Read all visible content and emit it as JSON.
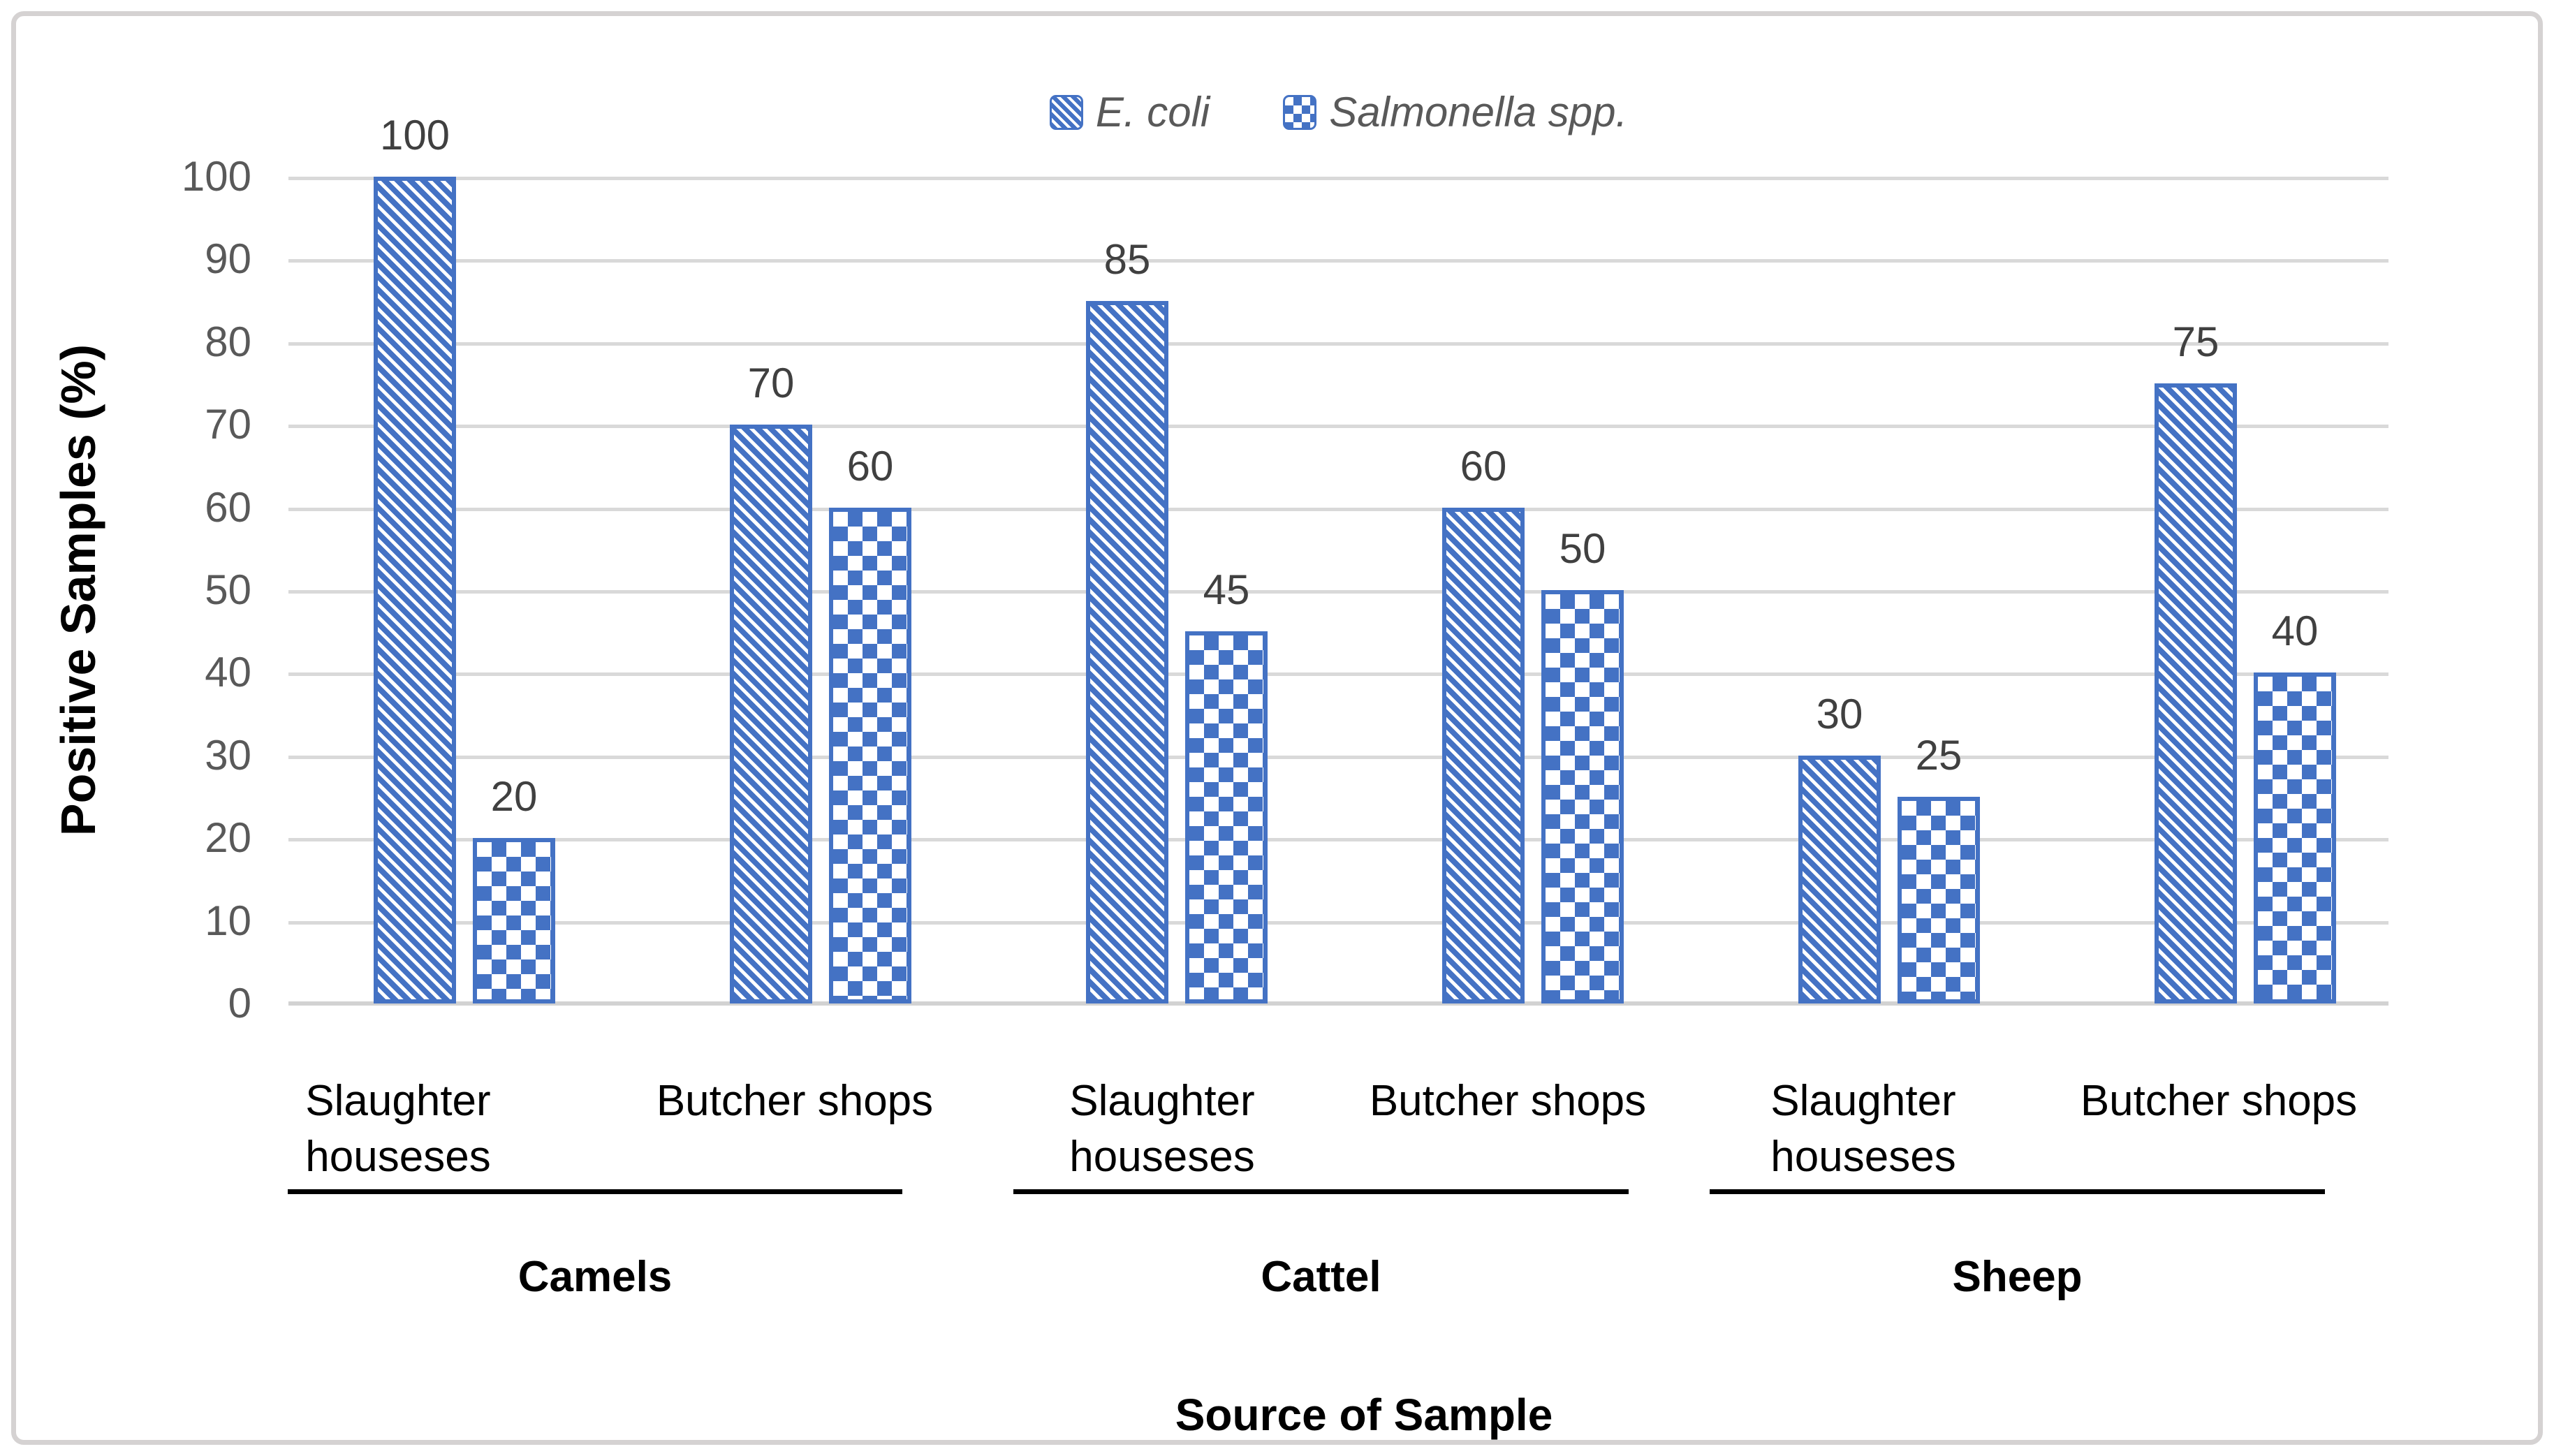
{
  "colors": {
    "bar_blue": "#4472c4",
    "gridline": "#d9d9d9",
    "tick_text": "#595959",
    "data_label_text": "#404040",
    "frame_border": "#d5d2d2"
  },
  "legend": {
    "items": [
      {
        "label": "E. coli",
        "icon": "diagonal-hatch-swatch"
      },
      {
        "label": "Salmonella spp.",
        "icon": "checkerboard-swatch"
      }
    ]
  },
  "y_axis": {
    "title": "Positive Samples (%)",
    "ticks": [
      "100",
      "90",
      "80",
      "70",
      "60",
      "50",
      "40",
      "30",
      "20",
      "10",
      "0"
    ]
  },
  "x_axis": {
    "title": "Source of Sample"
  },
  "chart_data": {
    "type": "bar",
    "title": "",
    "ylabel": "Positive Samples (%)",
    "xlabel": "Source of Sample",
    "ylim": [
      0,
      100
    ],
    "ytick_step": 10,
    "grid": true,
    "legend_position": "top-center",
    "series_names": [
      "E. coli",
      "Salmonella spp."
    ],
    "series_patterns": [
      "diagonal-hatch",
      "checkerboard"
    ],
    "groups": [
      {
        "label": "Camels",
        "clusters": [
          {
            "category": "Slaughter houseses",
            "values": {
              "ecoli": 100,
              "salmonella": 20
            }
          },
          {
            "category": "Butcher shops",
            "values": {
              "ecoli": 70,
              "salmonella": 60
            }
          }
        ]
      },
      {
        "label": "Cattel",
        "clusters": [
          {
            "category": "Slaughter houseses",
            "values": {
              "ecoli": 85,
              "salmonella": 45
            }
          },
          {
            "category": "Butcher shops",
            "values": {
              "ecoli": 60,
              "salmonella": 50
            }
          }
        ]
      },
      {
        "label": "Sheep",
        "clusters": [
          {
            "category": "Slaughter houseses",
            "values": {
              "ecoli": 30,
              "salmonella": 25
            }
          },
          {
            "category": "Butcher shops",
            "values": {
              "ecoli": 75,
              "salmonella": 40
            }
          }
        ]
      }
    ]
  }
}
